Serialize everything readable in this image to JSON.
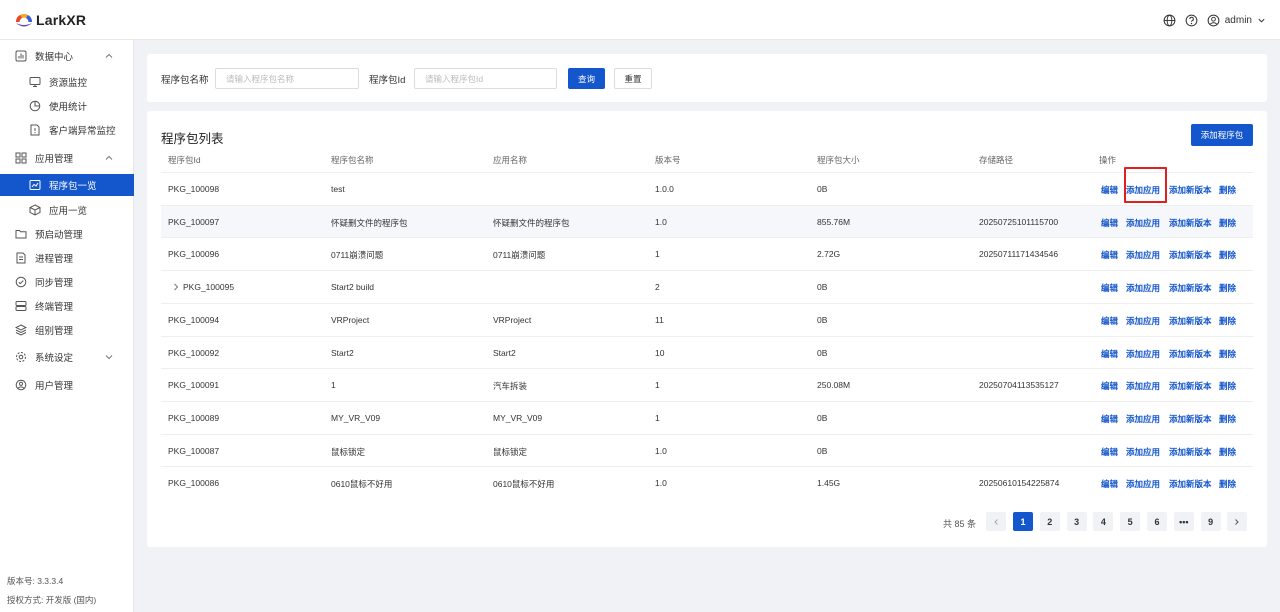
{
  "header": {
    "logo_text": "LarkXR",
    "user": "admin"
  },
  "sidebar": {
    "groups": [
      {
        "label": "数据中心",
        "icon": "chart-icon"
      },
      {
        "label": "资源监控",
        "icon": "monitor-icon"
      },
      {
        "label": "使用统计",
        "icon": "pie-icon"
      },
      {
        "label": "客户端异常监控",
        "icon": "file-alert-icon"
      },
      {
        "label": "应用管理",
        "icon": "apps-icon"
      },
      {
        "label": "程序包一览",
        "icon": "package-icon"
      },
      {
        "label": "应用一览",
        "icon": "cube-icon"
      },
      {
        "label": "预启动管理",
        "icon": "folder-icon"
      },
      {
        "label": "进程管理",
        "icon": "document-icon"
      },
      {
        "label": "同步管理",
        "icon": "sync-icon"
      },
      {
        "label": "终端管理",
        "icon": "server-icon"
      },
      {
        "label": "组别管理",
        "icon": "layers-icon"
      },
      {
        "label": "系统设定",
        "icon": "gear-icon"
      },
      {
        "label": "用户管理",
        "icon": "user-icon"
      }
    ],
    "version": "版本号: 3.3.3.4",
    "license": "授权方式: 开发版 (国内)"
  },
  "search": {
    "pkg_name_label": "程序包名称",
    "pkg_name_placeholder": "请输入程序包名称",
    "pkg_id_label": "程序包Id",
    "pkg_id_placeholder": "请输入程序包Id",
    "query_label": "查询",
    "reset_label": "重置"
  },
  "list": {
    "title": "程序包列表",
    "add_label": "添加程序包",
    "columns": [
      "程序包Id",
      "程序包名称",
      "应用名称",
      "版本号",
      "程序包大小",
      "存储路径",
      "操作"
    ],
    "actions": [
      "编辑",
      "添加应用",
      "添加新版本",
      "删除"
    ],
    "rows": [
      {
        "id": "PKG_100098",
        "name": "test",
        "app": "",
        "ver": "1.0.0",
        "size": "0B",
        "path": ""
      },
      {
        "id": "PKG_100097",
        "name": "怀疑删文件的程序包",
        "app": "怀疑删文件的程序包",
        "ver": "1.0",
        "size": "855.76M",
        "path": "20250725101115700"
      },
      {
        "id": "PKG_100096",
        "name": "0711崩溃问题",
        "app": "0711崩溃问题",
        "ver": "1",
        "size": "2.72G",
        "path": "20250711171434546"
      },
      {
        "id": "PKG_100095",
        "name": "Start2 build",
        "app": "",
        "ver": "2",
        "size": "0B",
        "path": ""
      },
      {
        "id": "PKG_100094",
        "name": "VRProject",
        "app": "VRProject",
        "ver": "11",
        "size": "0B",
        "path": ""
      },
      {
        "id": "PKG_100092",
        "name": "Start2",
        "app": "Start2",
        "ver": "10",
        "size": "0B",
        "path": ""
      },
      {
        "id": "PKG_100091",
        "name": "1",
        "app": "汽车拆装",
        "ver": "1",
        "size": "250.08M",
        "path": "20250704113535127"
      },
      {
        "id": "PKG_100089",
        "name": "MY_VR_V09",
        "app": "MY_VR_V09",
        "ver": "1",
        "size": "0B",
        "path": ""
      },
      {
        "id": "PKG_100087",
        "name": "鼠标锁定",
        "app": "鼠标锁定",
        "ver": "1.0",
        "size": "0B",
        "path": ""
      },
      {
        "id": "PKG_100086",
        "name": "0610鼠标不好用",
        "app": "0610鼠标不好用",
        "ver": "1.0",
        "size": "1.45G",
        "path": "20250610154225874"
      }
    ]
  },
  "pagination": {
    "total": "共 85 条",
    "pages": [
      "1",
      "2",
      "3",
      "4",
      "5",
      "6",
      "•••",
      "9"
    ],
    "current": "1"
  },
  "colors": {
    "primary": "#1456cc",
    "highlight_border": "#e02020"
  }
}
